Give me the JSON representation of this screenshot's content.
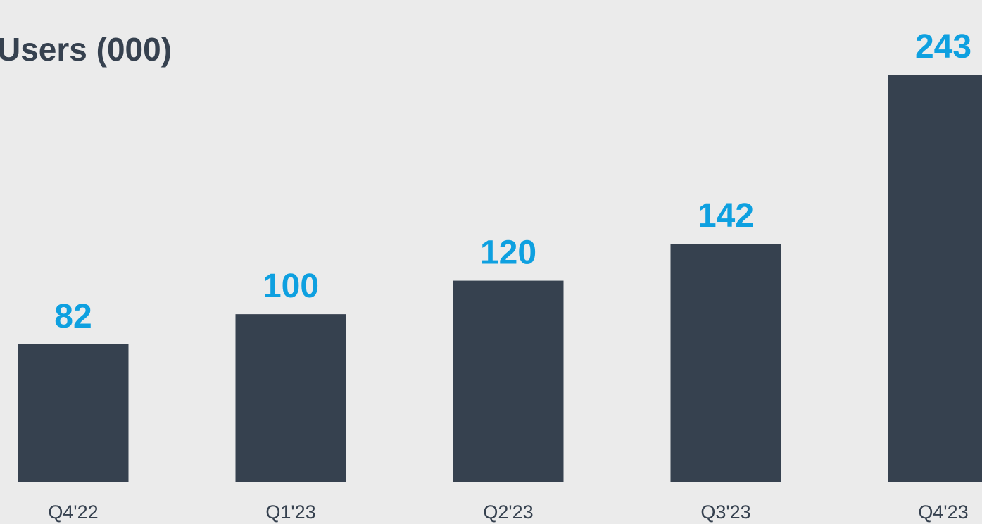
{
  "chart_data": {
    "type": "bar",
    "title": "Users (000)",
    "categories": [
      "Q4'22",
      "Q1'23",
      "Q2'23",
      "Q3'23",
      "Q4'23"
    ],
    "values": [
      82,
      100,
      120,
      142,
      243
    ],
    "color": "#36414f",
    "label_color": "#0ea0e0"
  }
}
